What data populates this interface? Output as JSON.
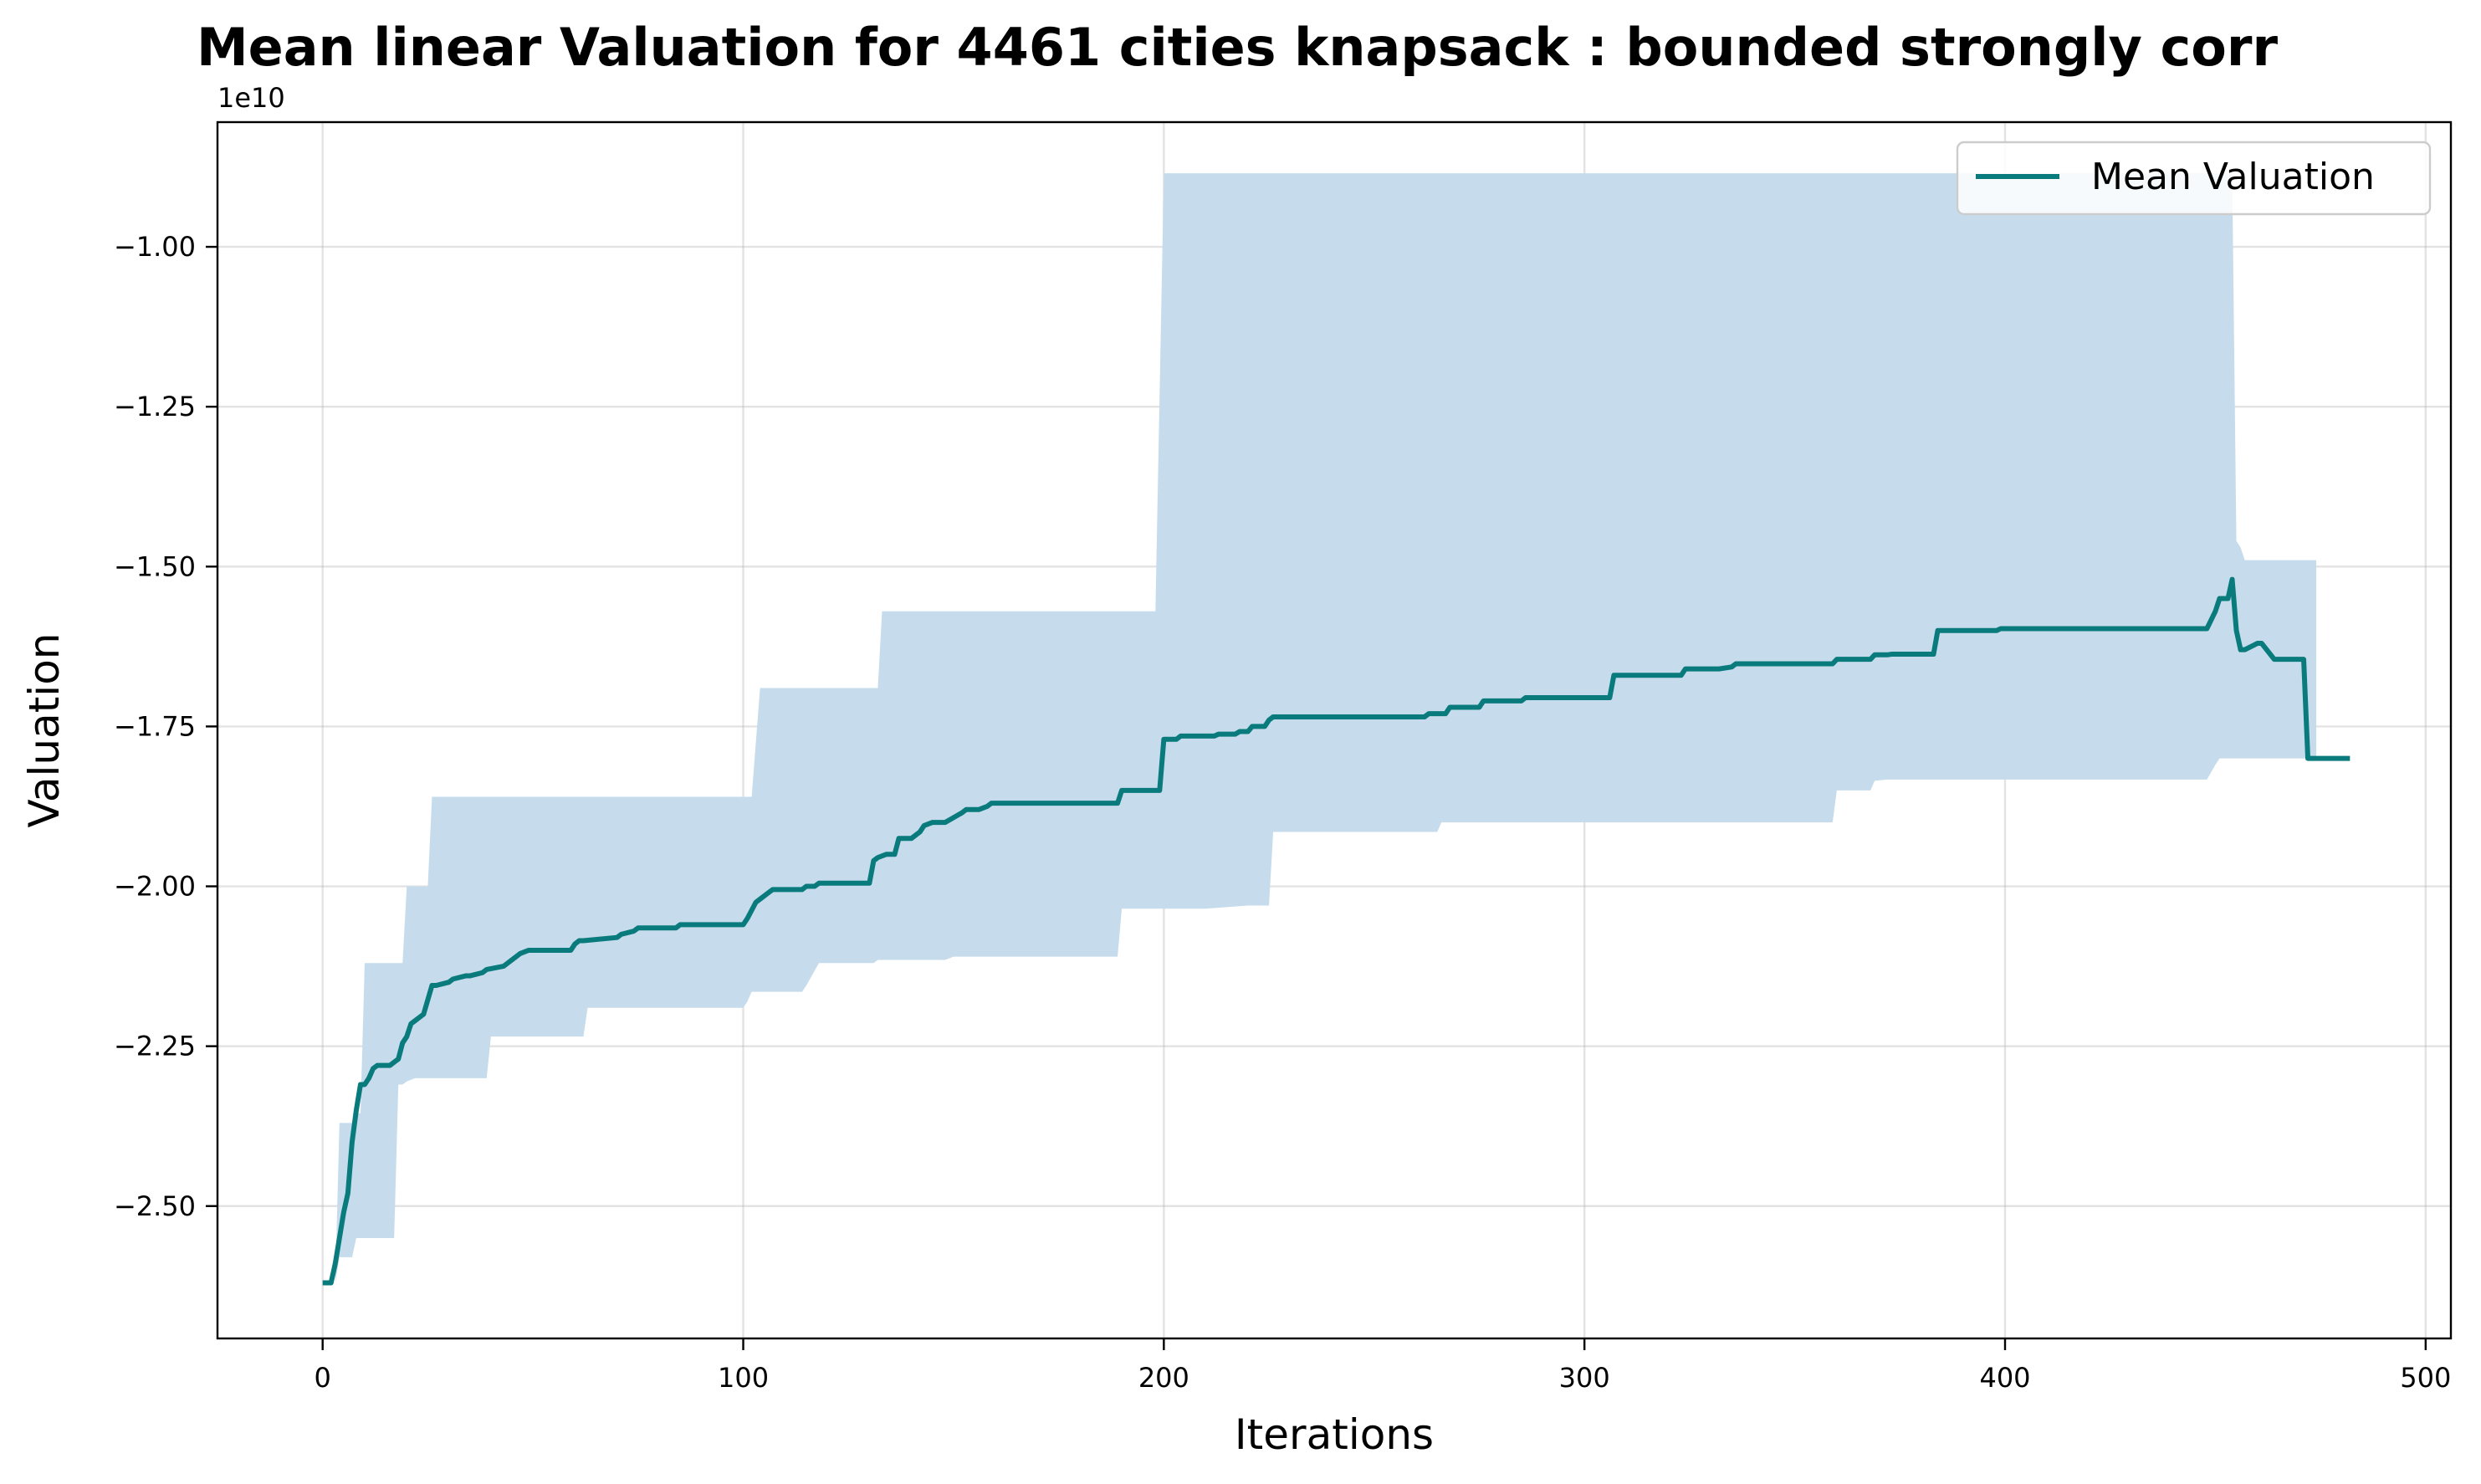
{
  "chart_data": {
    "type": "line",
    "title": "Mean linear Valuation for 4461 cities knapsack : bounded strongly corr",
    "xlabel": "Iterations",
    "ylabel": "Valuation",
    "y_offset_label": "1e10",
    "y_scale": 10000000000.0,
    "xlim": [
      -25,
      506
    ],
    "ylim": [
      -2.707,
      -0.805
    ],
    "xticks": [
      0,
      100,
      200,
      300,
      400,
      500
    ],
    "xtick_labels": [
      "0",
      "100",
      "200",
      "300",
      "400",
      "500"
    ],
    "yticks": [
      -2.5,
      -2.25,
      -2.0,
      -1.75,
      -1.5,
      -1.25,
      -1.0
    ],
    "ytick_labels": [
      "−2.50",
      "−2.25",
      "−2.00",
      "−1.75",
      "−1.50",
      "−1.25",
      "−1.00"
    ],
    "grid": true,
    "legend_position": "top-right",
    "colors": {
      "line": "#0a7b7d",
      "band": "#c6dcec",
      "axes": "#000000"
    },
    "series": [
      {
        "name": "Mean Valuation",
        "style": "line",
        "x": [
          0,
          2,
          3,
          4,
          5,
          6,
          7,
          8,
          9,
          10,
          11,
          12,
          13,
          16,
          17,
          18,
          19,
          20,
          21,
          22,
          23,
          24,
          26,
          27,
          30,
          31,
          34,
          35,
          38,
          39,
          43,
          46,
          47,
          49,
          50,
          59,
          60,
          61,
          62,
          70,
          71,
          74,
          75,
          84,
          85,
          100,
          101,
          103,
          104,
          106,
          107,
          114,
          115,
          117,
          118,
          130,
          131,
          132,
          134,
          136,
          137,
          140,
          142,
          143,
          145,
          148,
          152,
          153,
          156,
          158,
          159,
          180,
          189,
          190,
          198,
          199,
          200,
          203,
          204,
          212,
          213,
          217,
          218,
          220,
          221,
          224,
          225,
          226,
          262,
          263,
          267,
          268,
          275,
          276,
          285,
          286,
          306,
          307,
          323,
          324,
          332,
          335,
          336,
          359,
          360,
          368,
          369,
          372,
          373,
          383,
          384,
          398,
          399,
          448,
          450,
          451,
          452,
          453,
          454,
          455,
          456,
          457,
          460,
          461,
          464,
          465,
          471,
          472,
          474,
          482
        ],
        "y": [
          -2.62,
          -2.62,
          -2.59,
          -2.55,
          -2.51,
          -2.48,
          -2.4,
          -2.35,
          -2.31,
          -2.31,
          -2.3,
          -2.285,
          -2.28,
          -2.28,
          -2.275,
          -2.27,
          -2.245,
          -2.235,
          -2.215,
          -2.21,
          -2.205,
          -2.2,
          -2.155,
          -2.155,
          -2.15,
          -2.145,
          -2.14,
          -2.14,
          -2.135,
          -2.13,
          -2.125,
          -2.11,
          -2.105,
          -2.1,
          -2.1,
          -2.1,
          -2.09,
          -2.085,
          -2.085,
          -2.08,
          -2.075,
          -2.07,
          -2.065,
          -2.065,
          -2.06,
          -2.06,
          -2.05,
          -2.025,
          -2.02,
          -2.01,
          -2.005,
          -2.005,
          -2.0,
          -2.0,
          -1.995,
          -1.995,
          -1.96,
          -1.955,
          -1.95,
          -1.95,
          -1.925,
          -1.925,
          -1.915,
          -1.905,
          -1.9,
          -1.9,
          -1.885,
          -1.88,
          -1.88,
          -1.875,
          -1.87,
          -1.87,
          -1.87,
          -1.85,
          -1.85,
          -1.85,
          -1.77,
          -1.77,
          -1.765,
          -1.765,
          -1.762,
          -1.762,
          -1.758,
          -1.758,
          -1.75,
          -1.75,
          -1.74,
          -1.735,
          -1.735,
          -1.73,
          -1.73,
          -1.72,
          -1.72,
          -1.71,
          -1.71,
          -1.705,
          -1.705,
          -1.67,
          -1.67,
          -1.66,
          -1.66,
          -1.657,
          -1.652,
          -1.652,
          -1.645,
          -1.645,
          -1.638,
          -1.638,
          -1.637,
          -1.637,
          -1.6,
          -1.6,
          -1.597,
          -1.597,
          -1.57,
          -1.55,
          -1.55,
          -1.55,
          -1.52,
          -1.6,
          -1.63,
          -1.63,
          -1.62,
          -1.62,
          -1.645,
          -1.645,
          -1.645,
          -1.8,
          -1.8,
          -1.8
        ]
      },
      {
        "name": "",
        "style": "band",
        "x": [
          0,
          3,
          4,
          7,
          8,
          9,
          10,
          17,
          18,
          19,
          20,
          22,
          25,
          26,
          27,
          36,
          38,
          39,
          40,
          42,
          45,
          47,
          62,
          63,
          70,
          99,
          100,
          101,
          102,
          104,
          105,
          114,
          115,
          118,
          130,
          131,
          132,
          133,
          134,
          148,
          150,
          152,
          160,
          189,
          190,
          198,
          200,
          201,
          210,
          220,
          224,
          225,
          226,
          250,
          265,
          266,
          268,
          330,
          340,
          350,
          359,
          360,
          368,
          369,
          372,
          447,
          448,
          450,
          451,
          454,
          455,
          456,
          457,
          460,
          461,
          464,
          465,
          473,
          474
        ],
        "lower": [
          -2.62,
          -2.62,
          -2.58,
          -2.58,
          -2.55,
          -2.55,
          -2.55,
          -2.55,
          -2.31,
          -2.31,
          -2.305,
          -2.3,
          -2.3,
          -2.3,
          -2.3,
          -2.3,
          -2.3,
          -2.3,
          -2.235,
          -2.235,
          -2.235,
          -2.235,
          -2.235,
          -2.19,
          -2.19,
          -2.19,
          -2.19,
          -2.18,
          -2.165,
          -2.165,
          -2.165,
          -2.165,
          -2.155,
          -2.12,
          -2.12,
          -2.12,
          -2.115,
          -2.115,
          -2.115,
          -2.115,
          -2.11,
          -2.11,
          -2.11,
          -2.11,
          -2.035,
          -2.035,
          -2.035,
          -2.035,
          -2.035,
          -2.03,
          -2.03,
          -2.03,
          -1.915,
          -1.915,
          -1.915,
          -1.9,
          -1.9,
          -1.9,
          -1.9,
          -1.9,
          -1.9,
          -1.85,
          -1.85,
          -1.835,
          -1.833,
          -1.833,
          -1.833,
          -1.81,
          -1.8,
          -1.8,
          -1.8,
          -1.8,
          -1.8,
          -1.8,
          -1.8,
          -1.8,
          -1.8,
          -1.8,
          -1.8
        ],
        "upper": [
          -2.62,
          -2.62,
          -2.37,
          -2.37,
          -2.355,
          -2.355,
          -2.12,
          -2.12,
          -2.12,
          -2.12,
          -2.0,
          -2.0,
          -2.0,
          -1.86,
          -1.86,
          -1.86,
          -1.86,
          -1.86,
          -1.86,
          -1.86,
          -1.86,
          -1.86,
          -1.86,
          -1.86,
          -1.86,
          -1.86,
          -1.86,
          -1.86,
          -1.86,
          -1.69,
          -1.69,
          -1.69,
          -1.69,
          -1.69,
          -1.69,
          -1.69,
          -1.69,
          -1.57,
          -1.57,
          -1.57,
          -1.57,
          -1.57,
          -1.57,
          -1.57,
          -1.57,
          -1.57,
          -0.885,
          -0.885,
          -0.885,
          -0.885,
          -0.885,
          -0.885,
          -0.885,
          -0.885,
          -0.885,
          -0.885,
          -0.885,
          -0.885,
          -0.885,
          -0.885,
          -0.885,
          -0.885,
          -0.885,
          -0.885,
          -0.885,
          -0.885,
          -0.885,
          -0.885,
          -0.885,
          -0.885,
          -1.46,
          -1.47,
          -1.49,
          -1.49,
          -1.49,
          -1.49,
          -1.49,
          -1.49,
          -1.49
        ]
      }
    ]
  }
}
